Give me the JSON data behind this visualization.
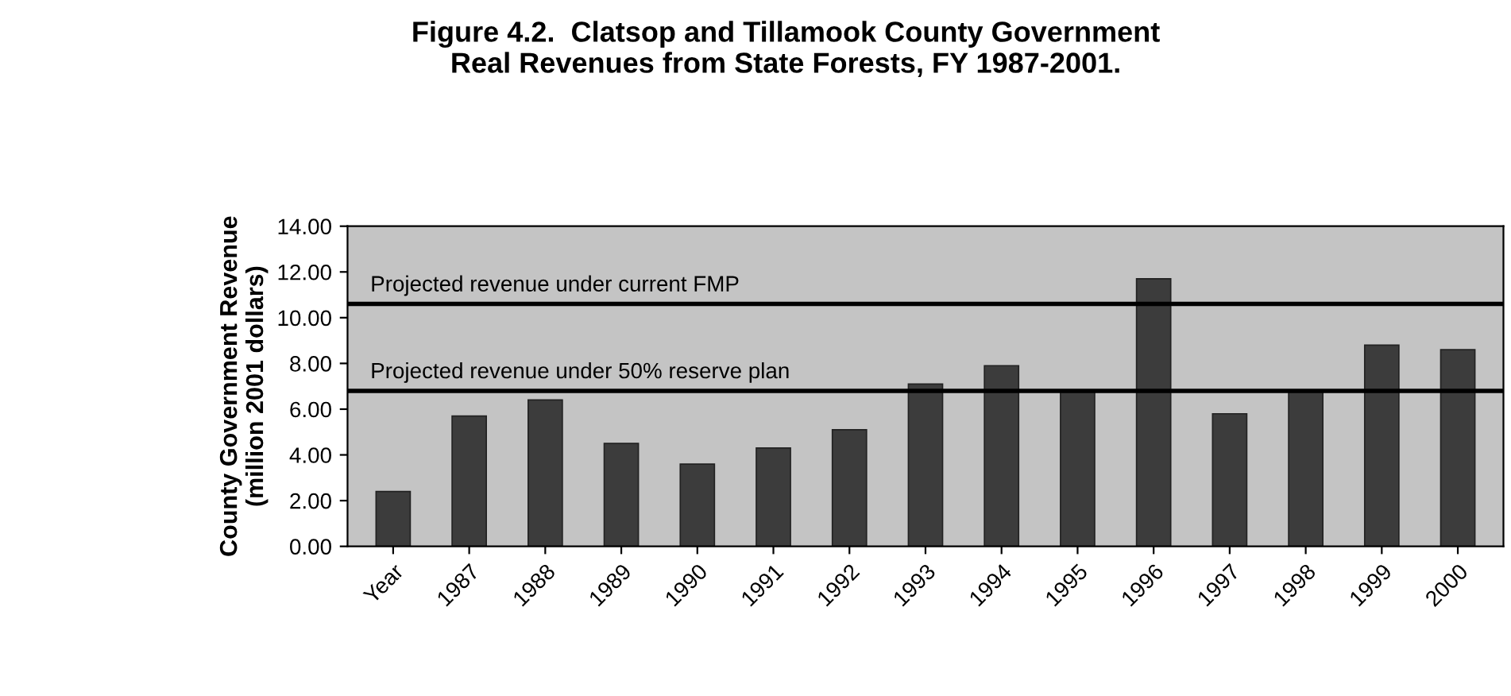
{
  "chart_data": {
    "type": "bar",
    "title": "Figure 4.2.  Clatsop and Tillamook County Government\nReal Revenues from State Forests, FY 1987-2001.",
    "ylabel": "County Government Revenue\n(million 2001 dollars)",
    "categories": [
      "Year",
      "1987",
      "1988",
      "1989",
      "1990",
      "1991",
      "1992",
      "1993",
      "1994",
      "1995",
      "1996",
      "1997",
      "1998",
      "1999",
      "2000"
    ],
    "values": [
      2.4,
      5.7,
      6.4,
      4.5,
      3.6,
      4.3,
      5.1,
      7.1,
      7.9,
      6.8,
      11.7,
      5.8,
      6.8,
      8.8,
      8.6
    ],
    "color": "#3c3c3c",
    "ylim": [
      0,
      14
    ],
    "yticks": [
      {
        "value": 0,
        "label": "0.00"
      },
      {
        "value": 2,
        "label": "2.00"
      },
      {
        "value": 4,
        "label": "4.00"
      },
      {
        "value": 6,
        "label": "6.00"
      },
      {
        "value": 8,
        "label": "8.00"
      },
      {
        "value": 10,
        "label": "10.00"
      },
      {
        "value": 12,
        "label": "12.00"
      },
      {
        "value": 14,
        "label": "14.00"
      }
    ],
    "ref_lines": [
      {
        "axis": "y",
        "value": 10.6,
        "label": "Projected revenue under current FMP",
        "color": "#000000"
      },
      {
        "axis": "y",
        "value": 6.8,
        "label": "Projected revenue under 50% reserve plan",
        "color": "#000000"
      }
    ],
    "grid": false,
    "legend": false
  }
}
